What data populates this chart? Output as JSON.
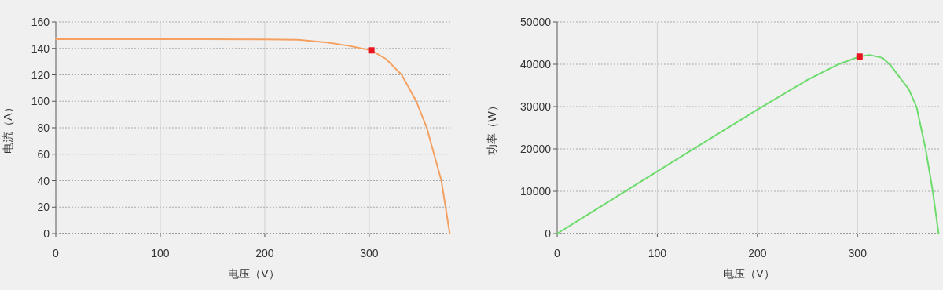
{
  "chart_data": [
    {
      "type": "line",
      "xlabel": "电压（V）",
      "ylabel": "电流（A）",
      "xlim": [
        0,
        379
      ],
      "ylim": [
        0,
        160
      ],
      "xticks": [
        0,
        100,
        200,
        300
      ],
      "yticks": [
        0,
        20,
        40,
        60,
        80,
        100,
        120,
        140,
        160
      ],
      "grid": true,
      "series": [
        {
          "color": "#f5a060",
          "marker": "none",
          "x": [
            0,
            100,
            200,
            232,
            260,
            280,
            302,
            316,
            331,
            345,
            355,
            362,
            369,
            373,
            377
          ],
          "values": [
            147,
            147,
            146.8,
            146.5,
            144.5,
            142,
            138.5,
            132,
            120,
            100,
            80,
            60,
            40,
            20,
            0
          ]
        },
        {
          "type": "scatter",
          "color": "#e8141e",
          "marker": "square",
          "x": [
            302
          ],
          "values": [
            138.5
          ]
        }
      ]
    },
    {
      "type": "line",
      "xlabel": "电压（V）",
      "ylabel": "功率（W）",
      "xlim": [
        0,
        383
      ],
      "ylim": [
        0,
        50000
      ],
      "xticks": [
        0,
        100,
        200,
        300
      ],
      "yticks": [
        0,
        10000,
        20000,
        30000,
        40000,
        50000
      ],
      "grid": true,
      "series": [
        {
          "color": "#6ddc6d",
          "marker": "none",
          "x": [
            0,
            50,
            100,
            150,
            200,
            250,
            280,
            302,
            312,
            325,
            333,
            345,
            351,
            359,
            368,
            375,
            381
          ],
          "values": [
            0,
            7350,
            14700,
            22000,
            29300,
            36300,
            39900,
            41800,
            42200,
            41500,
            39750,
            36000,
            34200,
            29900,
            20000,
            10200,
            0
          ]
        },
        {
          "type": "scatter",
          "color": "#e8141e",
          "marker": "square",
          "x": [
            302
          ],
          "values": [
            41800
          ]
        }
      ]
    }
  ]
}
